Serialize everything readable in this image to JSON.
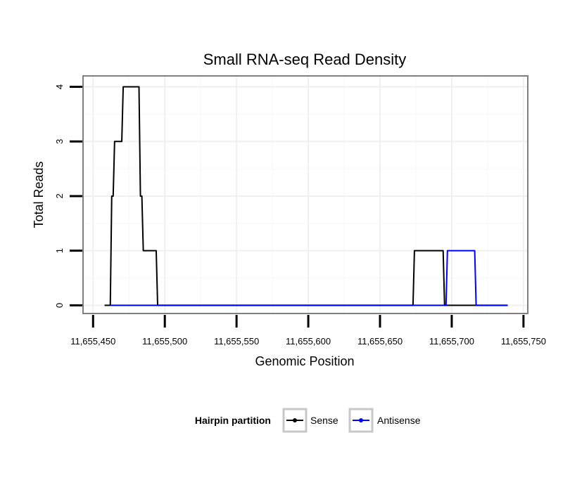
{
  "chart_data": {
    "type": "line",
    "title": "Small RNA-seq Read Density",
    "xlabel": "Genomic Position",
    "ylabel": "Total Reads",
    "xlim": [
      11655443,
      11655753
    ],
    "ylim": [
      -0.15,
      4.2
    ],
    "x_ticks": [
      11655450,
      11655500,
      11655550,
      11655600,
      11655650,
      11655700,
      11655750
    ],
    "x_tick_labels": [
      "11,655,450",
      "11,655,500",
      "11,655,550",
      "11,655,600",
      "11,655,650",
      "11,655,700",
      "11,655,750"
    ],
    "y_ticks": [
      0,
      1,
      2,
      3,
      4
    ],
    "y_tick_labels": [
      "0",
      "1",
      "2",
      "3",
      "4"
    ],
    "grid": true,
    "legend": {
      "title": "Hairpin partition",
      "position": "bottom",
      "entries": [
        "Sense",
        "Antisense"
      ]
    },
    "series": [
      {
        "name": "Sense",
        "color": "#000000",
        "x": [
          11655458,
          11655462,
          11655463,
          11655464,
          11655465,
          11655470,
          11655471,
          11655482,
          11655483,
          11655484,
          11655485,
          11655494,
          11655495,
          11655673,
          11655674,
          11655694,
          11655695,
          11655739
        ],
        "y": [
          0,
          0,
          2,
          2,
          3,
          3,
          4,
          4,
          2,
          2,
          1,
          1,
          0,
          0,
          1,
          1,
          0,
          0
        ]
      },
      {
        "name": "Antisense",
        "color": "#0000ff",
        "x": [
          11655462,
          11655495,
          11655696,
          11655697,
          11655716,
          11655717,
          11655739
        ],
        "y": [
          0,
          0,
          0,
          1,
          1,
          0,
          0
        ]
      }
    ]
  }
}
